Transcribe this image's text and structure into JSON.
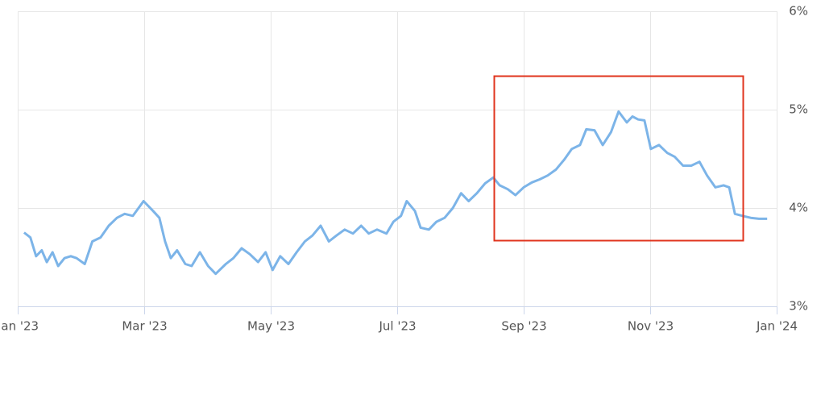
{
  "chart_data": {
    "type": "line",
    "x": [
      0.1,
      0.2,
      0.29,
      0.38,
      0.46,
      0.55,
      0.64,
      0.74,
      0.84,
      0.93,
      1.06,
      1.18,
      1.31,
      1.44,
      1.57,
      1.69,
      1.82,
      1.99,
      2.14,
      2.24,
      2.33,
      2.42,
      2.52,
      2.65,
      2.75,
      2.88,
      3.01,
      3.13,
      3.29,
      3.41,
      3.54,
      3.67,
      3.8,
      3.92,
      4.03,
      4.15,
      4.28,
      4.41,
      4.54,
      4.66,
      4.79,
      4.92,
      5.04,
      5.17,
      5.3,
      5.43,
      5.55,
      5.68,
      5.83,
      5.94,
      6.06,
      6.15,
      6.28,
      6.37,
      6.5,
      6.62,
      6.75,
      6.88,
      7.01,
      7.13,
      7.26,
      7.39,
      7.52,
      7.62,
      7.75,
      7.87,
      8.0,
      8.13,
      8.25,
      8.38,
      8.51,
      8.64,
      8.76,
      8.89,
      8.99,
      9.12,
      9.25,
      9.38,
      9.5,
      9.63,
      9.72,
      9.81,
      9.91,
      10.01,
      10.14,
      10.27,
      10.39,
      10.52,
      10.65,
      10.78,
      10.9,
      11.03,
      11.16,
      11.25,
      11.34,
      11.46,
      11.59,
      11.72,
      11.85
    ],
    "series": [
      {
        "color": "#7cb4e8",
        "values": [
          3.75,
          3.7,
          3.51,
          3.57,
          3.45,
          3.55,
          3.41,
          3.49,
          3.51,
          3.49,
          3.43,
          3.66,
          3.7,
          3.82,
          3.9,
          3.94,
          3.92,
          4.07,
          3.97,
          3.9,
          3.66,
          3.49,
          3.57,
          3.43,
          3.41,
          3.55,
          3.41,
          3.33,
          3.43,
          3.49,
          3.59,
          3.53,
          3.45,
          3.55,
          3.37,
          3.51,
          3.43,
          3.55,
          3.66,
          3.72,
          3.82,
          3.66,
          3.72,
          3.78,
          3.74,
          3.82,
          3.74,
          3.78,
          3.74,
          3.86,
          3.92,
          4.07,
          3.97,
          3.8,
          3.78,
          3.86,
          3.9,
          4.0,
          4.15,
          4.07,
          4.15,
          4.25,
          4.31,
          4.23,
          4.19,
          4.13,
          4.21,
          4.26,
          4.29,
          4.33,
          4.39,
          4.49,
          4.6,
          4.64,
          4.8,
          4.79,
          4.64,
          4.77,
          4.98,
          4.87,
          4.93,
          4.9,
          4.89,
          4.6,
          4.64,
          4.56,
          4.52,
          4.43,
          4.43,
          4.47,
          4.33,
          4.21,
          4.23,
          4.21,
          3.94,
          3.92,
          3.9,
          3.89,
          3.89
        ]
      }
    ],
    "xlim": [
      0,
      12
    ],
    "xticks": [
      {
        "value": 0,
        "label": "Jan '23"
      },
      {
        "value": 2,
        "label": "Mar '23"
      },
      {
        "value": 4,
        "label": "May '23"
      },
      {
        "value": 6,
        "label": "Jul '23"
      },
      {
        "value": 8,
        "label": "Sep '23"
      },
      {
        "value": 10,
        "label": "Nov '23"
      },
      {
        "value": 12,
        "label": "Jan '24"
      }
    ],
    "ylim": [
      3,
      6
    ],
    "yticks": [
      {
        "value": 3,
        "label": "3%"
      },
      {
        "value": 4,
        "label": "4%"
      },
      {
        "value": 5,
        "label": "5%"
      },
      {
        "value": 6,
        "label": "6%"
      }
    ],
    "grid": true
  }
}
